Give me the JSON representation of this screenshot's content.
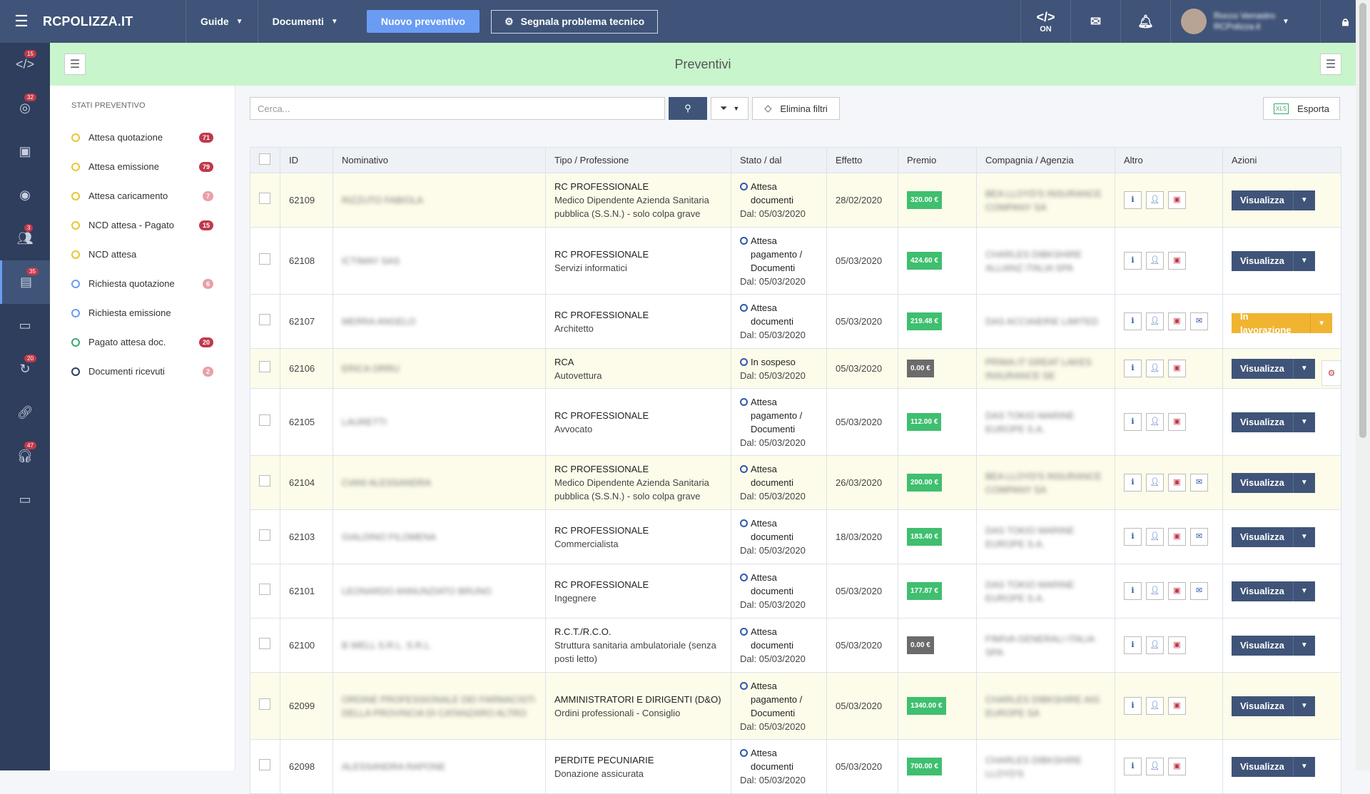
{
  "topbar": {
    "brand": "RCPOLIZZA.IT",
    "nav": [
      {
        "label": "Guide"
      },
      {
        "label": "Documenti"
      }
    ],
    "new_quote": "Nuovo preventivo",
    "report_issue": "Segnala problema tecnico",
    "dev_toggle": "ON",
    "user_name": "Rocco Verrastro",
    "user_role": "RCPolizza.it"
  },
  "sidebar": {
    "badges": [
      "15",
      "32",
      "",
      "",
      "3",
      "35",
      "",
      "20",
      "",
      "47",
      ""
    ]
  },
  "header": {
    "title": "Preventivi"
  },
  "states": {
    "title": "STATI PREVENTIVO",
    "items": [
      {
        "label": "Attesa quotazione",
        "count": "71",
        "ring": "#e8c532",
        "badge": "#c0394b"
      },
      {
        "label": "Attesa emissione",
        "count": "79",
        "ring": "#e8c532",
        "badge": "#c0394b"
      },
      {
        "label": "Attesa caricamento",
        "count": "7",
        "ring": "#e8c532",
        "badge": "#e8a0a8"
      },
      {
        "label": "NCD attesa - Pagato",
        "count": "15",
        "ring": "#e8c532",
        "badge": "#c0394b"
      },
      {
        "label": "NCD attesa",
        "count": "",
        "ring": "#e8c532",
        "badge": ""
      },
      {
        "label": "Richiesta quotazione",
        "count": "6",
        "ring": "#6a9cf3",
        "badge": "#e8a0a8"
      },
      {
        "label": "Richiesta emissione",
        "count": "",
        "ring": "#6a9cf3",
        "badge": ""
      },
      {
        "label": "Pagato attesa doc.",
        "count": "20",
        "ring": "#3aa86f",
        "badge": "#c0394b"
      },
      {
        "label": "Documenti ricevuti",
        "count": "2",
        "ring": "#2f3e5c",
        "badge": "#e8a0a8"
      }
    ]
  },
  "toolbar": {
    "search_placeholder": "Cerca...",
    "clear_filters": "Elimina filtri",
    "export": "Esporta",
    "xls": "XLS"
  },
  "table": {
    "headers": [
      "ID",
      "Nominativo",
      "Tipo / Professione",
      "Stato / dal",
      "Effetto",
      "Premio",
      "Compagnia / Agenzia",
      "Altro",
      "Azioni"
    ],
    "rows": [
      {
        "id": "62109",
        "name": "RIZZUTO FABIOLA",
        "tipo": "RC PROFESSIONALE",
        "prof": "Medico Dipendente Azienda Sanitaria pubblica (S.S.N.) - solo colpa grave",
        "stato": "Attesa documenti",
        "dal": "Dal: 05/03/2020",
        "effetto": "28/02/2020",
        "premio": "320.00 €",
        "premio_color": "#3fbf6f",
        "comp": "BEA LLOYD'S INSURANCE COMPANY SA",
        "hl": true,
        "chat": false,
        "action": "Visualizza",
        "wip": false
      },
      {
        "id": "62108",
        "name": "ICTIMAY SAS",
        "tipo": "RC PROFESSIONALE",
        "prof": "Servizi informatici",
        "stato": "Attesa pagamento / Documenti",
        "dal": "Dal: 05/03/2020",
        "effetto": "05/03/2020",
        "premio": "424.60 €",
        "premio_color": "#3fbf6f",
        "comp": "CHARLES DIBKSHIRE ALLIANZ ITALIA SPA",
        "hl": false,
        "chat": false,
        "action": "Visualizza",
        "wip": false
      },
      {
        "id": "62107",
        "name": "MERRA ANGELO",
        "tipo": "RC PROFESSIONALE",
        "prof": "Architetto",
        "stato": "Attesa documenti",
        "dal": "Dal: 05/03/2020",
        "effetto": "05/03/2020",
        "premio": "219.48 €",
        "premio_color": "#3fbf6f",
        "comp": "DAS ACCIAIERIE LIMITED",
        "hl": false,
        "chat": true,
        "action": "In lavorazione",
        "wip": true
      },
      {
        "id": "62106",
        "name": "ERICA ORRU",
        "tipo": "RCA",
        "prof": "Autovettura",
        "stato": "In sospeso",
        "dal": "Dal: 05/03/2020",
        "effetto": "05/03/2020",
        "premio": "0.00 €",
        "premio_color": "#6b6b6b",
        "comp": "PRIMA.IT GREAT LAKES INSURANCE SE",
        "hl": true,
        "chat": false,
        "action": "Visualizza",
        "wip": false
      },
      {
        "id": "62105",
        "name": "LAURETTI",
        "tipo": "RC PROFESSIONALE",
        "prof": "Avvocato",
        "stato": "Attesa pagamento / Documenti",
        "dal": "Dal: 05/03/2020",
        "effetto": "05/03/2020",
        "premio": "112.00 €",
        "premio_color": "#3fbf6f",
        "comp": "DAS TOKIO MARINE EUROPE S.A.",
        "hl": false,
        "chat": false,
        "action": "Visualizza",
        "wip": false
      },
      {
        "id": "62104",
        "name": "CIANI ALESSANDRA",
        "tipo": "RC PROFESSIONALE",
        "prof": "Medico Dipendente Azienda Sanitaria pubblica (S.S.N.) - solo colpa grave",
        "stato": "Attesa documenti",
        "dal": "Dal: 05/03/2020",
        "effetto": "26/03/2020",
        "premio": "200.00 €",
        "premio_color": "#3fbf6f",
        "comp": "BEA LLOYD'S INSURANCE COMPANY SA",
        "hl": true,
        "chat": true,
        "action": "Visualizza",
        "wip": false
      },
      {
        "id": "62103",
        "name": "GIALDINO FILOMENA",
        "tipo": "RC PROFESSIONALE",
        "prof": "Commercialista",
        "stato": "Attesa documenti",
        "dal": "Dal: 05/03/2020",
        "effetto": "18/03/2020",
        "premio": "183.40 €",
        "premio_color": "#3fbf6f",
        "comp": "DAS TOKIO MARINE EUROPE S.A.",
        "hl": false,
        "chat": true,
        "action": "Visualizza",
        "wip": false
      },
      {
        "id": "62101",
        "name": "LEONARDO ANNUNZIATO BRUNO",
        "tipo": "RC PROFESSIONALE",
        "prof": "Ingegnere",
        "stato": "Attesa documenti",
        "dal": "Dal: 05/03/2020",
        "effetto": "05/03/2020",
        "premio": "177.87 €",
        "premio_color": "#3fbf6f",
        "comp": "DAS TOKIO MARINE EUROPE S.A.",
        "hl": false,
        "chat": true,
        "action": "Visualizza",
        "wip": false
      },
      {
        "id": "62100",
        "name": "B WELL S.R.L. S.R.L.",
        "tipo": "R.C.T./R.C.O.",
        "prof": "Struttura sanitaria ambulatoriale (senza posti letto)",
        "stato": "Attesa documenti",
        "dal": "Dal: 05/03/2020",
        "effetto": "05/03/2020",
        "premio": "0.00 €",
        "premio_color": "#6b6b6b",
        "comp": "FIMIVA GENERALI ITALIA SPA",
        "hl": false,
        "chat": false,
        "action": "Visualizza",
        "wip": false
      },
      {
        "id": "62099",
        "name": "ORDINE PROFESSIONALE DEI FARMACISTI DELLA PROVINCIA DI CATANZARO ALTRO",
        "tipo": "AMMINISTRATORI E DIRIGENTI (D&O)",
        "prof": "Ordini professionali - Consiglio",
        "stato": "Attesa pagamento / Documenti",
        "dal": "Dal: 05/03/2020",
        "effetto": "05/03/2020",
        "premio": "1340.00 €",
        "premio_color": "#3fbf6f",
        "comp": "CHARLES DIBKSHIRE AIG EUROPE SA",
        "hl": true,
        "chat": false,
        "action": "Visualizza",
        "wip": false
      },
      {
        "id": "62098",
        "name": "ALESSANDRA RAPONE",
        "tipo": "PERDITE PECUNIARIE",
        "prof": "Donazione assicurata",
        "stato": "Attesa documenti",
        "dal": "Dal: 05/03/2020",
        "effetto": "05/03/2020",
        "premio": "700.00 €",
        "premio_color": "#3fbf6f",
        "comp": "CHARLES DIBKSHIRE LLOYD'S",
        "hl": false,
        "chat": false,
        "action": "Visualizza",
        "wip": false
      }
    ]
  }
}
